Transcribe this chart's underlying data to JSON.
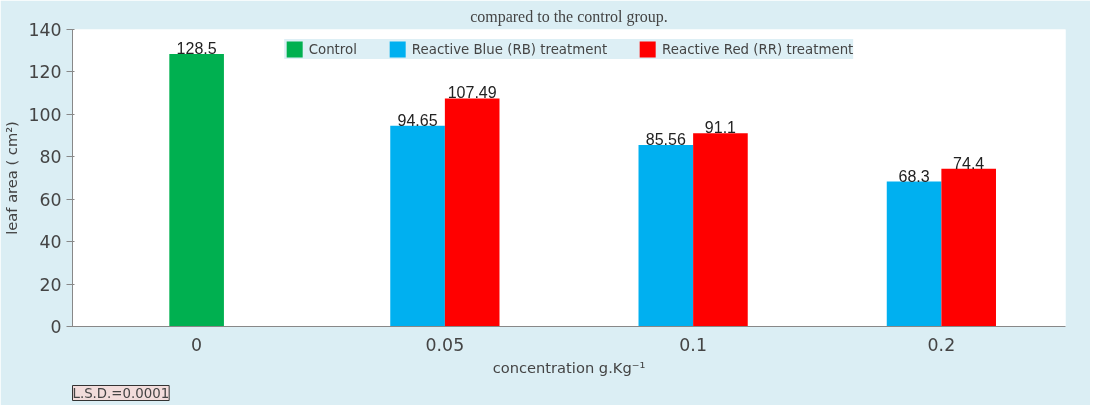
{
  "chart_data": {
    "type": "bar",
    "title": "compared to the control group.",
    "xlabel": "concentration g.Kg⁻¹",
    "ylabel": "leaf area ( cm²)",
    "categories": [
      "0",
      "0.05",
      "0.1",
      "0.2"
    ],
    "series": [
      {
        "name": "Control",
        "color": "#00b050",
        "values": [
          128.5,
          null,
          null,
          null
        ]
      },
      {
        "name": "Reactive Blue (RB) treatment",
        "color": "#00b0f0",
        "values": [
          null,
          94.65,
          85.56,
          68.3
        ]
      },
      {
        "name": "Reactive Red (RR) treatment",
        "color": "#ff0000",
        "values": [
          null,
          107.49,
          91.1,
          74.4
        ]
      }
    ],
    "ylim": [
      0,
      140
    ],
    "yticks": [
      0,
      20,
      40,
      60,
      80,
      100,
      120,
      140
    ],
    "grid": false,
    "legend": "top",
    "data_labels": true,
    "annotations": [
      "L.S.D.=0.0001"
    ]
  }
}
